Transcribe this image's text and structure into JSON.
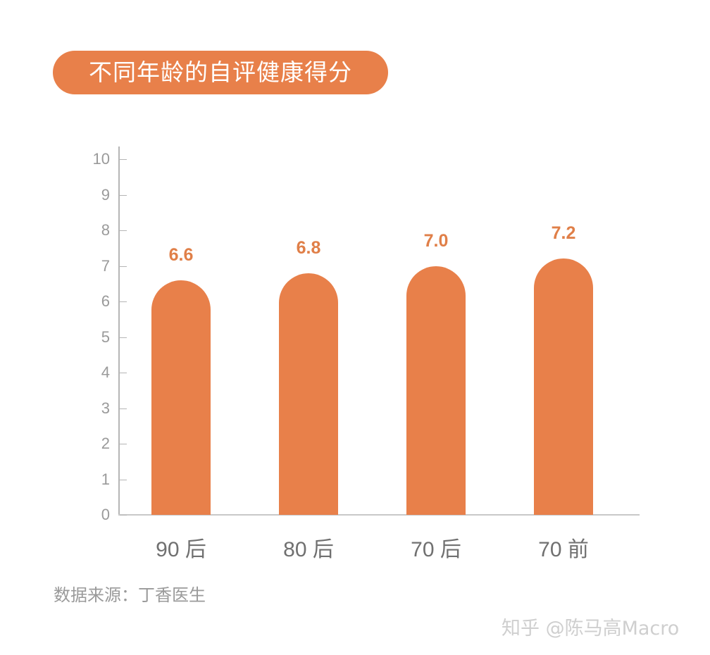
{
  "title": "不同年龄的自评健康得分",
  "source": "数据来源：丁香医生",
  "watermark": "知乎 @陈马高Macro",
  "colors": {
    "bar": "#e8804a",
    "value_label": "#e07f48",
    "axis_text": "#9a9a9a"
  },
  "chart_data": {
    "type": "bar",
    "title": "不同年龄的自评健康得分",
    "categories": [
      "90 后",
      "80 后",
      "70 后",
      "70 前"
    ],
    "values": [
      6.6,
      6.8,
      7.0,
      7.2
    ],
    "value_labels": [
      "6.6",
      "6.8",
      "7.0",
      "7.2"
    ],
    "xlabel": "",
    "ylabel": "",
    "ylim": [
      0,
      10
    ],
    "yticks": [
      "0",
      "1",
      "2",
      "3",
      "4",
      "5",
      "6",
      "7",
      "8",
      "9",
      "10"
    ],
    "grid": false,
    "legend": null,
    "source": "数据来源：丁香医生"
  }
}
